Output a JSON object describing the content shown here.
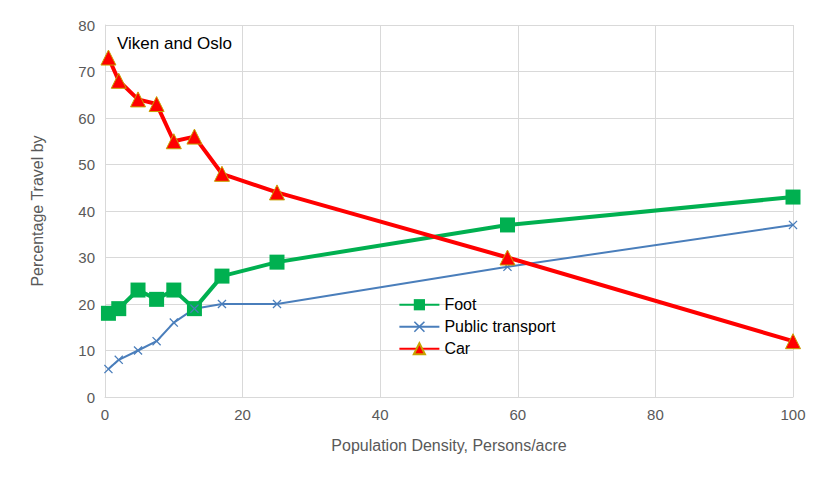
{
  "chart_data": {
    "type": "line",
    "title": "Viken and Oslo",
    "x_label": "Population Density, Persons/acre",
    "y_label": "Percentage Travel by",
    "x": [
      0.5,
      2,
      4.8,
      7.5,
      10,
      13,
      17,
      25,
      58.5,
      100
    ],
    "series": [
      {
        "name": "Foot",
        "color": "#00b050",
        "marker": "square",
        "values": [
          18,
          19,
          23,
          21,
          23,
          19,
          26,
          29,
          37,
          43
        ]
      },
      {
        "name": "Public transport",
        "color": "#4a7ebb",
        "marker": "x",
        "values": [
          6,
          8,
          10,
          12,
          16,
          19,
          20,
          20,
          28,
          37
        ]
      },
      {
        "name": "Car",
        "color": "#ff0000",
        "marker": "triangle",
        "values": [
          73,
          68,
          64,
          63,
          55,
          56,
          48,
          44,
          30,
          12
        ]
      }
    ],
    "xlim": [
      0,
      100
    ],
    "xticks": [
      0,
      20,
      40,
      60,
      80,
      100
    ],
    "ylim": [
      0,
      80
    ],
    "yticks": [
      0,
      10,
      20,
      30,
      40,
      50,
      60,
      70,
      80
    ],
    "grid": true,
    "legend": "lower center"
  }
}
